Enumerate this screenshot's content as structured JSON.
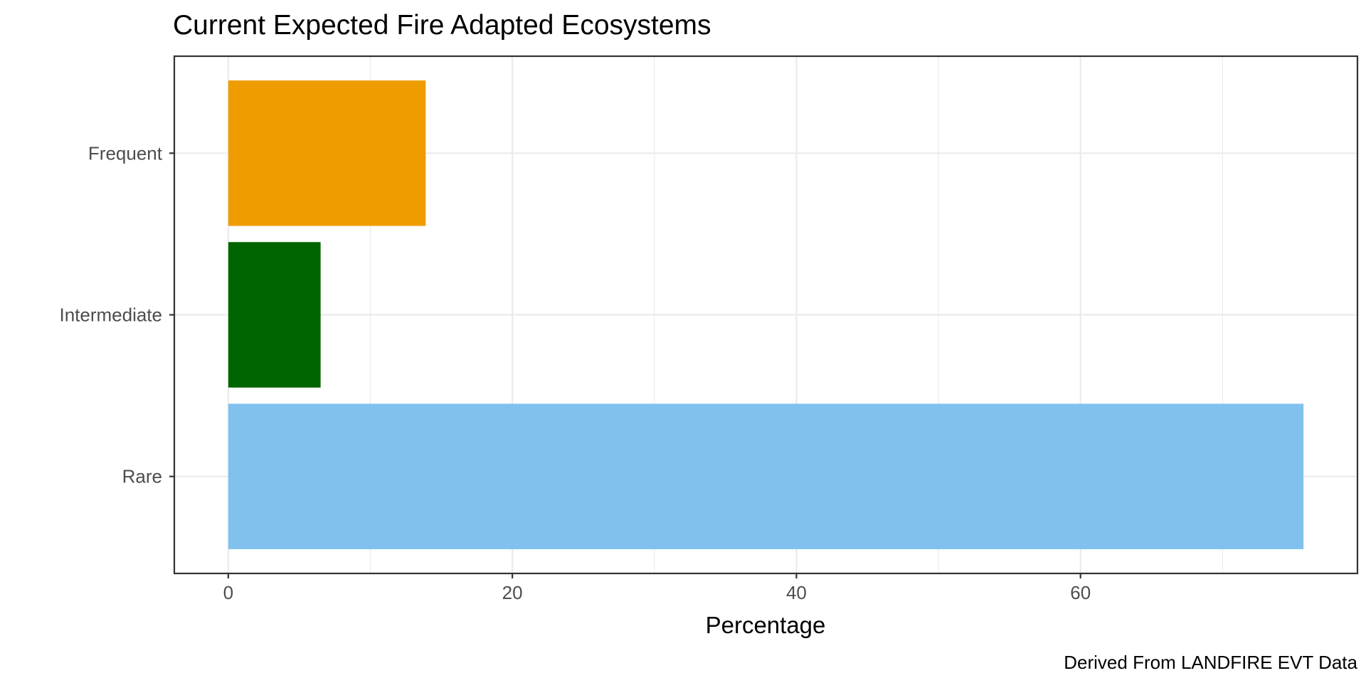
{
  "chart_data": {
    "type": "bar",
    "orientation": "horizontal",
    "title": "Current Expected Fire Adapted Ecosystems",
    "xlabel": "Percentage",
    "ylabel": "",
    "caption": "Derived From LANDFIRE EVT Data",
    "categories": [
      "Frequent",
      "Intermediate",
      "Rare"
    ],
    "values": [
      13.9,
      6.5,
      75.7
    ],
    "colors": [
      "#EF9C00",
      "#006400",
      "#80C1ED"
    ],
    "xlim": [
      -3.8,
      79.5
    ],
    "xticks": [
      0,
      20,
      40,
      60
    ],
    "xtick_labels": [
      "0",
      "20",
      "40",
      "60"
    ],
    "grid": true,
    "legend": "none"
  }
}
